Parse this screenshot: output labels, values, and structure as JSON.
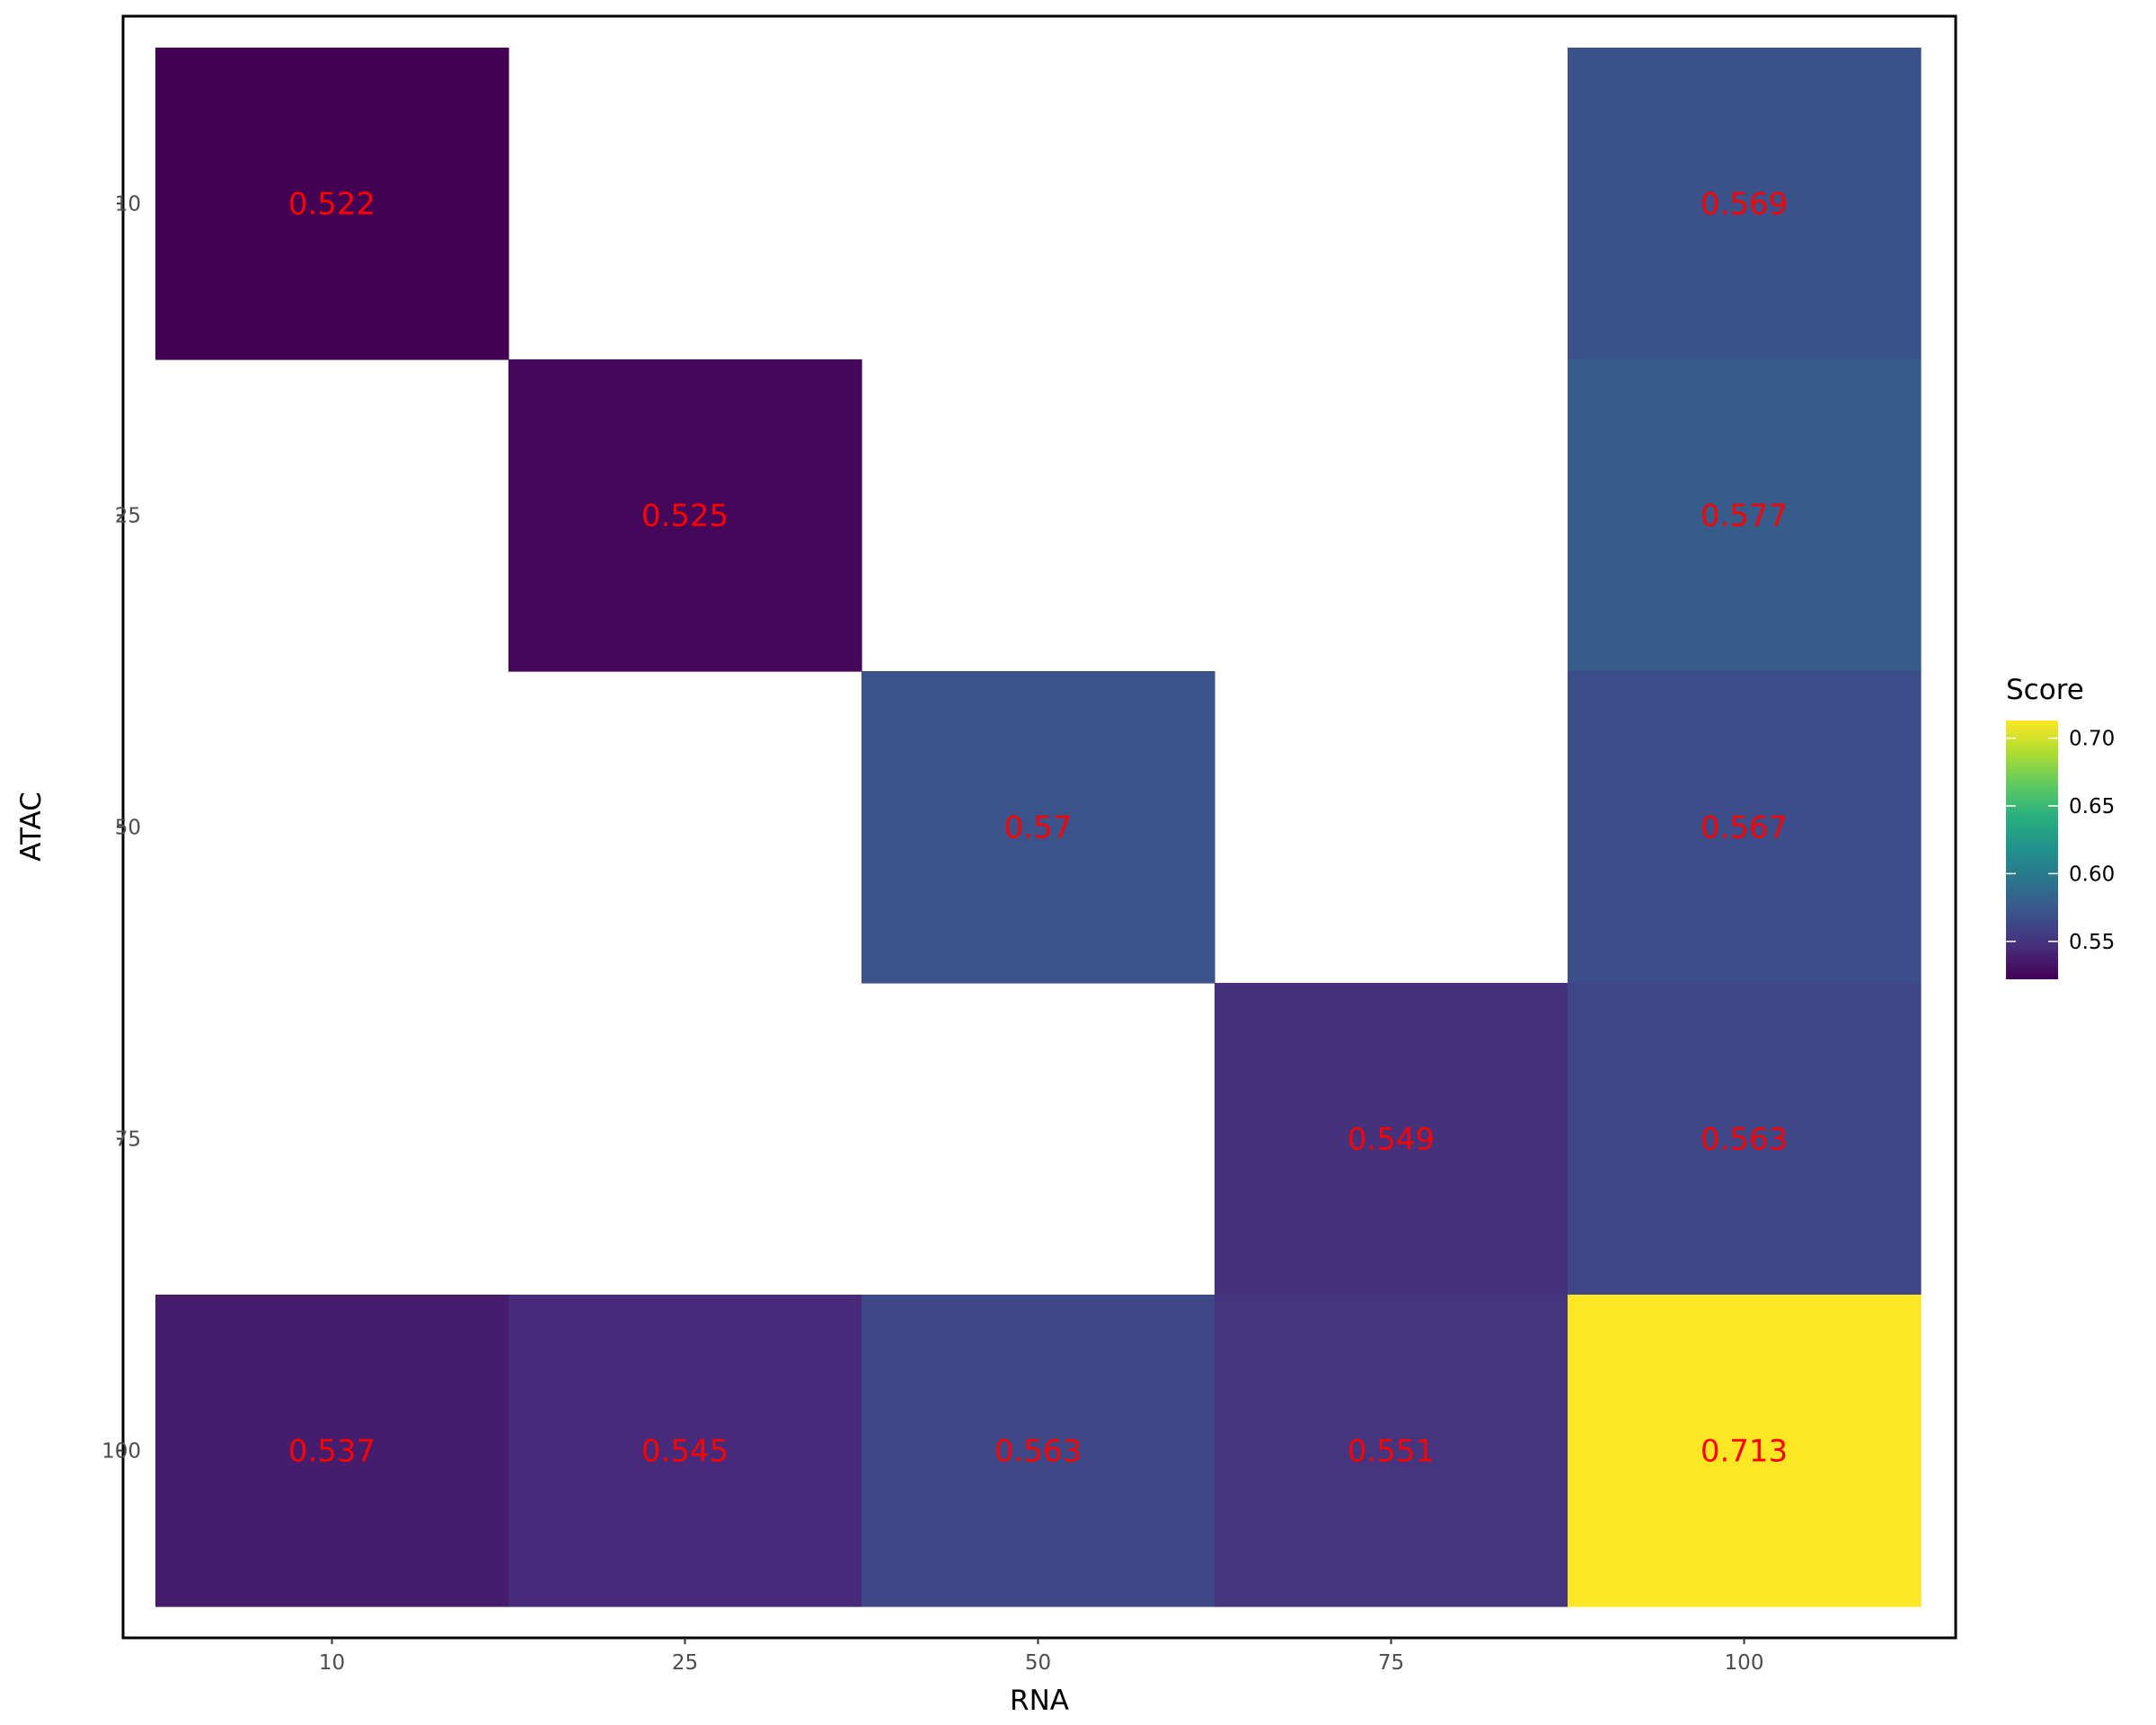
{
  "chart_data": {
    "type": "heatmap",
    "title": "",
    "xlabel": "RNA",
    "ylabel": "ATAC",
    "x_categories": [
      "10",
      "25",
      "50",
      "75",
      "100"
    ],
    "y_categories": [
      "10",
      "25",
      "50",
      "75",
      "100"
    ],
    "cells": [
      {
        "x": "10",
        "y": "10",
        "value": 0.522,
        "label": "0.522"
      },
      {
        "x": "100",
        "y": "10",
        "value": 0.569,
        "label": "0.569"
      },
      {
        "x": "25",
        "y": "25",
        "value": 0.525,
        "label": "0.525"
      },
      {
        "x": "100",
        "y": "25",
        "value": 0.577,
        "label": "0.577"
      },
      {
        "x": "50",
        "y": "50",
        "value": 0.57,
        "label": "0.57"
      },
      {
        "x": "100",
        "y": "50",
        "value": 0.567,
        "label": "0.567"
      },
      {
        "x": "75",
        "y": "75",
        "value": 0.549,
        "label": "0.549"
      },
      {
        "x": "100",
        "y": "75",
        "value": 0.563,
        "label": "0.563"
      },
      {
        "x": "10",
        "y": "100",
        "value": 0.537,
        "label": "0.537"
      },
      {
        "x": "25",
        "y": "100",
        "value": 0.545,
        "label": "0.545"
      },
      {
        "x": "50",
        "y": "100",
        "value": 0.563,
        "label": "0.563"
      },
      {
        "x": "75",
        "y": "100",
        "value": 0.551,
        "label": "0.551"
      },
      {
        "x": "100",
        "y": "100",
        "value": 0.713,
        "label": "0.713"
      }
    ],
    "colorscale": "viridis",
    "color_range": [
      0.522,
      0.713
    ],
    "label_color": "#ff0000",
    "legend": {
      "title": "Score",
      "ticks": [
        {
          "value": 0.55,
          "label": "0.55"
        },
        {
          "value": 0.6,
          "label": "0.60"
        },
        {
          "value": 0.65,
          "label": "0.65"
        },
        {
          "value": 0.7,
          "label": "0.70"
        }
      ],
      "position": "right"
    },
    "panel_border": true,
    "grid": false
  }
}
